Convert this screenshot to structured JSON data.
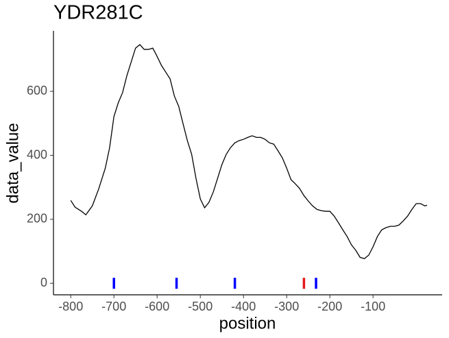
{
  "chart_data": {
    "type": "line",
    "title": "YDR281C",
    "x_label": "position",
    "y_label": "data_value",
    "xlim": [
      -840,
      60
    ],
    "ylim": [
      -36,
      789
    ],
    "xticks": [
      -800,
      -700,
      -600,
      -500,
      -400,
      -300,
      -200,
      -100
    ],
    "yticks": [
      0,
      200,
      400,
      600
    ],
    "grid": false,
    "series": [
      {
        "color": "#000000",
        "x": [
          -800,
          -790,
          -775,
          -765,
          -750,
          -735,
          -720,
          -710,
          -700,
          -690,
          -680,
          -670,
          -660,
          -650,
          -640,
          -630,
          -620,
          -610,
          -600,
          -590,
          -580,
          -570,
          -560,
          -550,
          -540,
          -530,
          -520,
          -510,
          -500,
          -490,
          -480,
          -470,
          -460,
          -450,
          -440,
          -430,
          -420,
          -410,
          -400,
          -390,
          -380,
          -370,
          -360,
          -350,
          -340,
          -330,
          -320,
          -310,
          -300,
          -290,
          -280,
          -270,
          -260,
          -250,
          -240,
          -230,
          -220,
          -210,
          -200,
          -190,
          -180,
          -170,
          -160,
          -150,
          -140,
          -130,
          -120,
          -110,
          -100,
          -90,
          -80,
          -70,
          -60,
          -50,
          -40,
          -30,
          -20,
          -10,
          0,
          10,
          20,
          25
        ],
        "values": [
          259,
          238,
          225,
          214,
          242,
          296,
          360,
          424,
          521,
          564,
          596,
          649,
          692,
          735,
          746,
          731,
          731,
          735,
          709,
          681,
          660,
          639,
          585,
          553,
          499,
          446,
          403,
          328,
          264,
          236,
          253,
          285,
          328,
          371,
          403,
          424,
          439,
          446,
          450,
          456,
          461,
          456,
          456,
          450,
          439,
          435,
          414,
          392,
          360,
          324,
          311,
          296,
          274,
          257,
          242,
          231,
          227,
          225,
          225,
          210,
          189,
          167,
          146,
          120,
          103,
          81,
          77,
          88,
          114,
          146,
          167,
          174,
          178,
          178,
          182,
          195,
          210,
          231,
          249,
          249,
          242,
          244
        ]
      }
    ],
    "markers": {
      "x": [
        -700,
        -555,
        -420,
        -260,
        -232
      ],
      "y": [
        0,
        0,
        0,
        0,
        0
      ],
      "colors": [
        "#0000ff",
        "#0000ff",
        "#0000ff",
        "#e41a1c",
        "#0000ff"
      ]
    }
  }
}
